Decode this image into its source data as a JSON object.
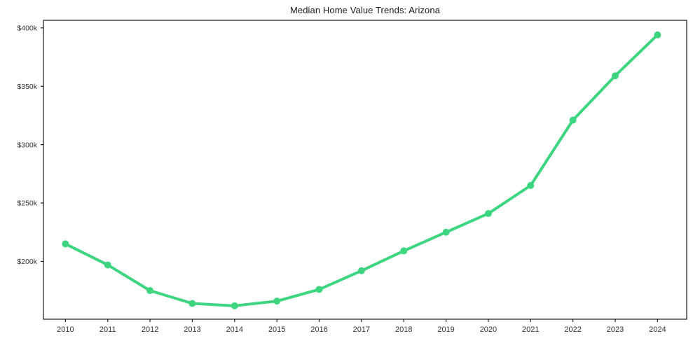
{
  "figure": {
    "background": "#ffffff"
  },
  "colors": {
    "line": "#3ed581",
    "marker": "#3ed581",
    "spine": "#1a1a1a",
    "tick_text": "#333333",
    "title_text": "#1a1a1a"
  },
  "chart_data": {
    "type": "line",
    "title": "Median Home Value Trends: Arizona",
    "xlabel": "",
    "ylabel": "",
    "categories": [
      2010,
      2011,
      2012,
      2013,
      2014,
      2015,
      2016,
      2017,
      2018,
      2019,
      2020,
      2021,
      2022,
      2023,
      2024
    ],
    "series": [
      {
        "name": "Median Home Value",
        "color": "#3ed581",
        "marker": "circle",
        "values_unit": "thousand_usd",
        "values": [
          215,
          197,
          175,
          164,
          162,
          166,
          176,
          192,
          209,
          225,
          241,
          265,
          321,
          359,
          394
        ]
      }
    ],
    "y_ticks": [
      {
        "value": 200,
        "label": "$200k"
      },
      {
        "value": 250,
        "label": "$250k"
      },
      {
        "value": 300,
        "label": "$300k"
      },
      {
        "value": 350,
        "label": "$350k"
      },
      {
        "value": 400,
        "label": "$400k"
      }
    ],
    "ylim": [
      150.5,
      406.5
    ],
    "xlim": [
      -0.52,
      14.69
    ],
    "grid": false,
    "legend": "none"
  }
}
